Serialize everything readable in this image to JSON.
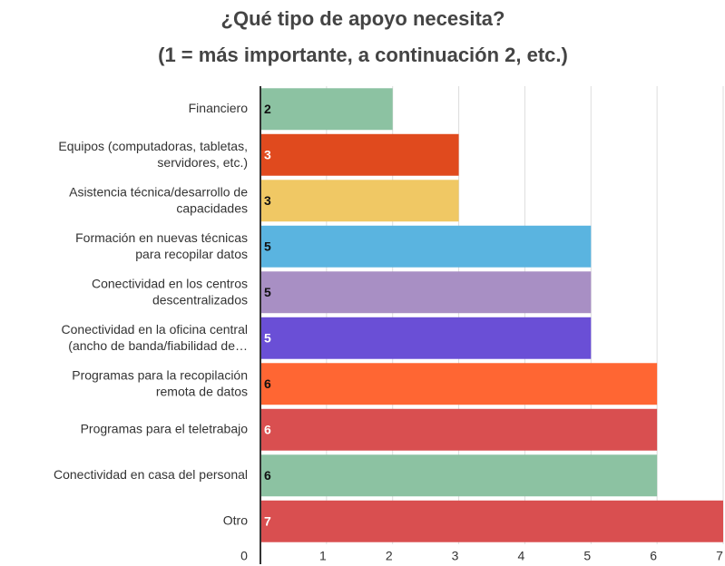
{
  "chart_data": {
    "type": "bar",
    "orientation": "horizontal",
    "title": "¿Qué tipo de apoyo necesita?",
    "subtitle": "(1 = más importante, a continuación 2, etc.)",
    "categories": [
      "Financiero",
      "Equipos (computadoras, tabletas,\nservidores, etc.)",
      "Asistencia técnica/desarrollo de\ncapacidades",
      "Formación en nuevas técnicas\npara recopilar datos",
      "Conectividad en los centros\ndescentralizados",
      "Conectividad en la oficina central\n(ancho de banda/fiabilidad de…",
      "Programas para la recopilación\nremota de datos",
      "Programas para el teletrabajo",
      "Conectividad en casa del personal",
      "Otro"
    ],
    "values": [
      2,
      3,
      3,
      5,
      5,
      5,
      6,
      6,
      6,
      7
    ],
    "colors": [
      "#8cc2a2",
      "#e04a1e",
      "#f0c864",
      "#5ab4e0",
      "#a88fc4",
      "#6a4fd6",
      "#ff6633",
      "#d94f50",
      "#8cc2a2",
      "#d94f50"
    ],
    "value_label_colors": [
      "#111",
      "#fff",
      "#111",
      "#111",
      "#111",
      "#fff",
      "#111",
      "#fff",
      "#111",
      "#fff"
    ],
    "xlim": [
      0,
      7
    ],
    "xticks": [
      0,
      1,
      2,
      3,
      4,
      5,
      6,
      7
    ],
    "grid": true
  }
}
